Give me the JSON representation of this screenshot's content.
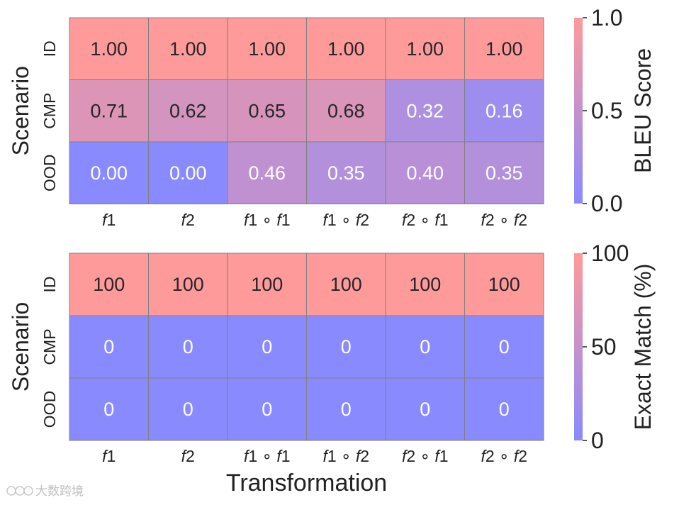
{
  "chart_data": [
    {
      "type": "heatmap",
      "xlabel": "",
      "ylabel": "Scenario",
      "columns": [
        [
          "f",
          "1"
        ],
        [
          "f",
          "2"
        ],
        [
          "f",
          "1",
          " ∘ ",
          "f",
          "1"
        ],
        [
          "f",
          "1",
          " ∘ ",
          "f",
          "2"
        ],
        [
          "f",
          "2",
          " ∘ ",
          "f",
          "1"
        ],
        [
          "f",
          "2",
          " ∘ ",
          "f",
          "2"
        ]
      ],
      "rows": [
        "ID",
        "CMP",
        "OOD"
      ],
      "values": [
        [
          1.0,
          1.0,
          1.0,
          1.0,
          1.0,
          1.0
        ],
        [
          0.71,
          0.62,
          0.65,
          0.68,
          0.32,
          0.16
        ],
        [
          0.0,
          0.0,
          0.46,
          0.35,
          0.4,
          0.35
        ]
      ],
      "labels": [
        [
          "1.00",
          "1.00",
          "1.00",
          "1.00",
          "1.00",
          "1.00"
        ],
        [
          "0.71",
          "0.62",
          "0.65",
          "0.68",
          "0.32",
          "0.16"
        ],
        [
          "0.00",
          "0.00",
          "0.46",
          "0.35",
          "0.40",
          "0.35"
        ]
      ],
      "vmin": 0,
      "vmax": 1,
      "colorbar": {
        "label": "BLEU Score",
        "ticks": [
          0,
          0.5,
          1
        ],
        "tick_labels": [
          "0.0",
          "0.5",
          "1.0"
        ]
      }
    },
    {
      "type": "heatmap",
      "xlabel": "Transformation",
      "ylabel": "Scenario",
      "columns": [
        [
          "f",
          "1"
        ],
        [
          "f",
          "2"
        ],
        [
          "f",
          "1",
          " ∘ ",
          "f",
          "1"
        ],
        [
          "f",
          "1",
          " ∘ ",
          "f",
          "2"
        ],
        [
          "f",
          "2",
          " ∘ ",
          "f",
          "1"
        ],
        [
          "f",
          "2",
          " ∘ ",
          "f",
          "2"
        ]
      ],
      "rows": [
        "ID",
        "CMP",
        "OOD"
      ],
      "values": [
        [
          100,
          100,
          100,
          100,
          100,
          100
        ],
        [
          0,
          0,
          0,
          0,
          0,
          0
        ],
        [
          0,
          0,
          0,
          0,
          0,
          0
        ]
      ],
      "labels": [
        [
          "100",
          "100",
          "100",
          "100",
          "100",
          "100"
        ],
        [
          "0",
          "0",
          "0",
          "0",
          "0",
          "0"
        ],
        [
          "0",
          "0",
          "0",
          "0",
          "0",
          "0"
        ]
      ],
      "vmin": 0,
      "vmax": 100,
      "colorbar": {
        "label": "Exact Match (%)",
        "ticks": [
          0,
          50,
          100
        ],
        "tick_labels": [
          "0",
          "50",
          "100"
        ]
      }
    }
  ],
  "colormap": {
    "low": "#8a8aff",
    "high": "#ff9a9a",
    "grid_line": "#808080",
    "text_on_low": "#ffffff",
    "text_on_high": "#262626"
  },
  "watermark": {
    "text": "大数跨境"
  }
}
